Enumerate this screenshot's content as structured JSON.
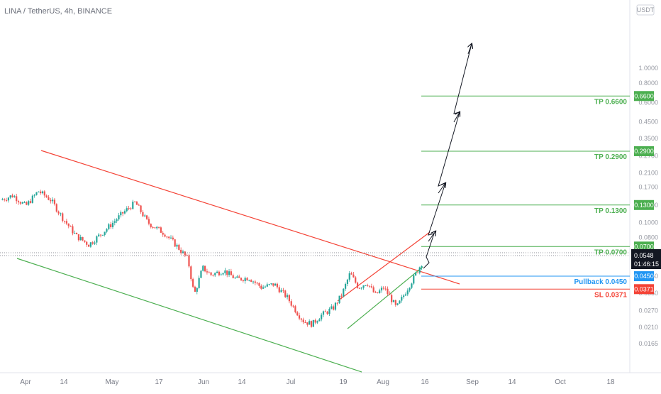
{
  "header": {
    "title": "LINA / TetherUS, 4h, BINANCE",
    "currency": "USDT"
  },
  "colors": {
    "up": "#26a69a",
    "down": "#ef5350",
    "level_green": "#4caf50",
    "level_blue": "#2196f3",
    "level_red": "#f44336",
    "trend_red": "#f44336",
    "trend_green": "#4caf50",
    "price_tag": "#131722"
  },
  "chart_data": {
    "type": "candlestick",
    "symbol": "LINA / TetherUS",
    "timeframe": "4h",
    "exchange": "BINANCE",
    "y_scale": "log",
    "y_ticks": [
      0.0165,
      0.021,
      0.027,
      0.035,
      0.045,
      0.06,
      0.08,
      0.1,
      0.13,
      0.17,
      0.21,
      0.27,
      0.35,
      0.45,
      0.6,
      0.8,
      1.0
    ],
    "y_tick_labels": [
      "0.0165",
      "0.0210",
      "0.0270",
      "0.0350",
      "0.0450",
      "0.0600",
      "0.0800",
      "0.1000",
      "0.1300",
      "0.1700",
      "0.2100",
      "0.2700",
      "0.3500",
      "0.4500",
      "0.6000",
      "0.8000",
      "1.0000"
    ],
    "x_ticks": [
      "Apr",
      "14",
      "May",
      "17",
      "Jun",
      "14",
      "Jul",
      "19",
      "Aug",
      "16",
      "Sep",
      "14",
      "Oct",
      "18"
    ],
    "price_path": [
      {
        "t": 0.0,
        "p": 0.14
      },
      {
        "t": 0.03,
        "p": 0.15
      },
      {
        "t": 0.06,
        "p": 0.128
      },
      {
        "t": 0.09,
        "p": 0.16
      },
      {
        "t": 0.12,
        "p": 0.14
      },
      {
        "t": 0.15,
        "p": 0.105
      },
      {
        "t": 0.18,
        "p": 0.082
      },
      {
        "t": 0.21,
        "p": 0.072
      },
      {
        "t": 0.25,
        "p": 0.09
      },
      {
        "t": 0.29,
        "p": 0.115
      },
      {
        "t": 0.32,
        "p": 0.135
      },
      {
        "t": 0.35,
        "p": 0.1
      },
      {
        "t": 0.39,
        "p": 0.085
      },
      {
        "t": 0.42,
        "p": 0.07
      },
      {
        "t": 0.445,
        "p": 0.058
      },
      {
        "t": 0.46,
        "p": 0.034
      },
      {
        "t": 0.48,
        "p": 0.051
      },
      {
        "t": 0.5,
        "p": 0.046
      },
      {
        "t": 0.53,
        "p": 0.049
      },
      {
        "t": 0.56,
        "p": 0.043
      },
      {
        "t": 0.59,
        "p": 0.044
      },
      {
        "t": 0.62,
        "p": 0.038
      },
      {
        "t": 0.65,
        "p": 0.04
      },
      {
        "t": 0.68,
        "p": 0.033
      },
      {
        "t": 0.705,
        "p": 0.026
      },
      {
        "t": 0.72,
        "p": 0.023
      },
      {
        "t": 0.74,
        "p": 0.022
      },
      {
        "t": 0.76,
        "p": 0.025
      },
      {
        "t": 0.79,
        "p": 0.028
      },
      {
        "t": 0.81,
        "p": 0.034
      },
      {
        "t": 0.83,
        "p": 0.047
      },
      {
        "t": 0.85,
        "p": 0.038
      },
      {
        "t": 0.87,
        "p": 0.041
      },
      {
        "t": 0.89,
        "p": 0.034
      },
      {
        "t": 0.91,
        "p": 0.038
      },
      {
        "t": 0.925,
        "p": 0.033
      },
      {
        "t": 0.94,
        "p": 0.028
      },
      {
        "t": 0.955,
        "p": 0.033
      },
      {
        "t": 0.97,
        "p": 0.039
      },
      {
        "t": 0.985,
        "p": 0.046
      },
      {
        "t": 1.0,
        "p": 0.0548
      }
    ],
    "levels": [
      {
        "name": "TP",
        "value": 0.66,
        "label": "TP 0.6600",
        "tag": "0.6600",
        "color": "#4caf50"
      },
      {
        "name": "TP",
        "value": 0.29,
        "label": "TP 0.2900",
        "tag": "0.2900",
        "color": "#4caf50"
      },
      {
        "name": "TP",
        "value": 0.13,
        "label": "TP 0.1300",
        "tag": "0.1300",
        "color": "#4caf50"
      },
      {
        "name": "TP",
        "value": 0.07,
        "label": "TP 0.0700",
        "tag": "0.0700",
        "color": "#4caf50"
      },
      {
        "name": "Pullback",
        "value": 0.045,
        "label": "Pullback 0.0450",
        "tag": "0.0450",
        "color": "#2196f3"
      },
      {
        "name": "SL",
        "value": 0.0371,
        "label": "SL 0.0371",
        "tag": "0.0371",
        "color": "#f44336"
      }
    ],
    "current_price": {
      "value": 0.0548,
      "label": "0.0548",
      "countdown": "01:46:15"
    }
  }
}
